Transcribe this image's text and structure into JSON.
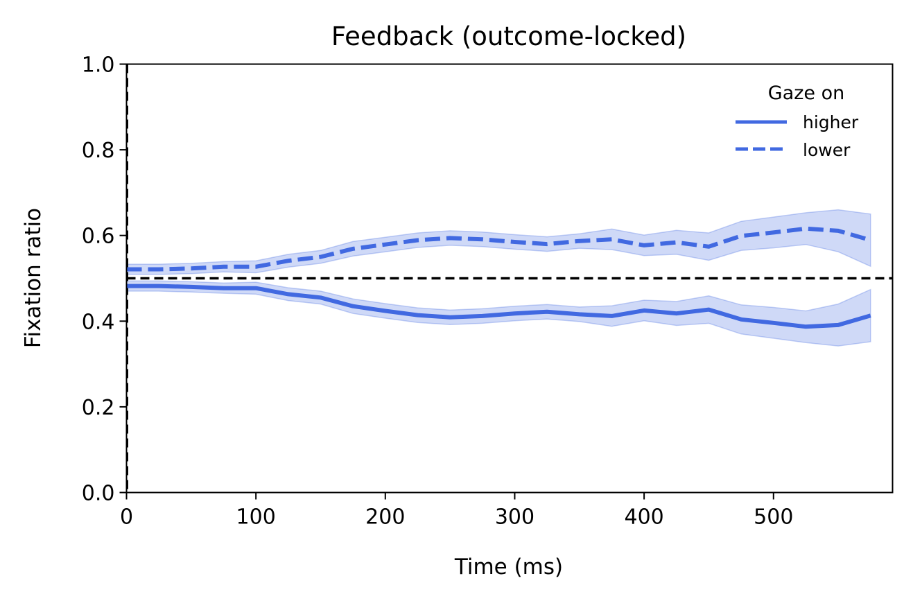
{
  "chart_data": {
    "type": "line",
    "title": "Feedback (outcome-locked)",
    "xlabel": "Time (ms)",
    "ylabel": "Fixation ratio",
    "xlim": [
      0,
      592
    ],
    "ylim": [
      0.0,
      1.0
    ],
    "xticks": [
      0,
      100,
      200,
      300,
      400,
      500
    ],
    "yticks": [
      0.0,
      0.2,
      0.4,
      0.6,
      0.8,
      1.0
    ],
    "ytick_labels": [
      "0.0",
      "0.2",
      "0.4",
      "0.6",
      "0.8",
      "1.0"
    ],
    "grid": false,
    "legend": {
      "title": "Gaze on",
      "position": "top-right"
    },
    "reference_lines": [
      {
        "orientation": "horizontal",
        "value": 0.5,
        "style": "dashed",
        "color": "#000000"
      },
      {
        "orientation": "vertical",
        "value": 0,
        "style": "dashed",
        "color": "#000000"
      }
    ],
    "x": [
      0,
      25,
      50,
      75,
      100,
      125,
      150,
      175,
      200,
      225,
      250,
      275,
      300,
      325,
      350,
      375,
      400,
      425,
      450,
      475,
      500,
      525,
      550,
      575
    ],
    "series": [
      {
        "name": "higher",
        "style": "solid",
        "color": "#4169e1",
        "values": [
          0.482,
          0.482,
          0.48,
          0.477,
          0.477,
          0.463,
          0.455,
          0.435,
          0.424,
          0.414,
          0.409,
          0.412,
          0.418,
          0.422,
          0.416,
          0.412,
          0.425,
          0.418,
          0.427,
          0.404,
          0.396,
          0.387,
          0.391,
          0.413
        ],
        "lower_ci": [
          0.47,
          0.47,
          0.468,
          0.465,
          0.463,
          0.448,
          0.44,
          0.418,
          0.407,
          0.397,
          0.392,
          0.395,
          0.401,
          0.405,
          0.399,
          0.388,
          0.401,
          0.39,
          0.395,
          0.37,
          0.36,
          0.35,
          0.342,
          0.352
        ],
        "upper_ci": [
          0.494,
          0.494,
          0.492,
          0.489,
          0.491,
          0.478,
          0.47,
          0.452,
          0.441,
          0.431,
          0.426,
          0.429,
          0.435,
          0.439,
          0.433,
          0.436,
          0.449,
          0.446,
          0.459,
          0.438,
          0.432,
          0.424,
          0.44,
          0.474
        ]
      },
      {
        "name": "lower",
        "style": "dashed",
        "color": "#4169e1",
        "values": [
          0.521,
          0.521,
          0.523,
          0.527,
          0.527,
          0.541,
          0.55,
          0.569,
          0.579,
          0.589,
          0.594,
          0.591,
          0.585,
          0.58,
          0.587,
          0.591,
          0.577,
          0.584,
          0.574,
          0.599,
          0.607,
          0.616,
          0.611,
          0.589
        ],
        "lower_ci": [
          0.509,
          0.509,
          0.511,
          0.515,
          0.513,
          0.526,
          0.535,
          0.552,
          0.562,
          0.572,
          0.577,
          0.574,
          0.568,
          0.563,
          0.57,
          0.567,
          0.553,
          0.556,
          0.542,
          0.565,
          0.571,
          0.579,
          0.562,
          0.528
        ],
        "upper_ci": [
          0.533,
          0.533,
          0.535,
          0.539,
          0.541,
          0.556,
          0.565,
          0.586,
          0.596,
          0.606,
          0.611,
          0.608,
          0.602,
          0.597,
          0.604,
          0.615,
          0.601,
          0.612,
          0.606,
          0.633,
          0.643,
          0.653,
          0.66,
          0.65
        ]
      }
    ]
  }
}
